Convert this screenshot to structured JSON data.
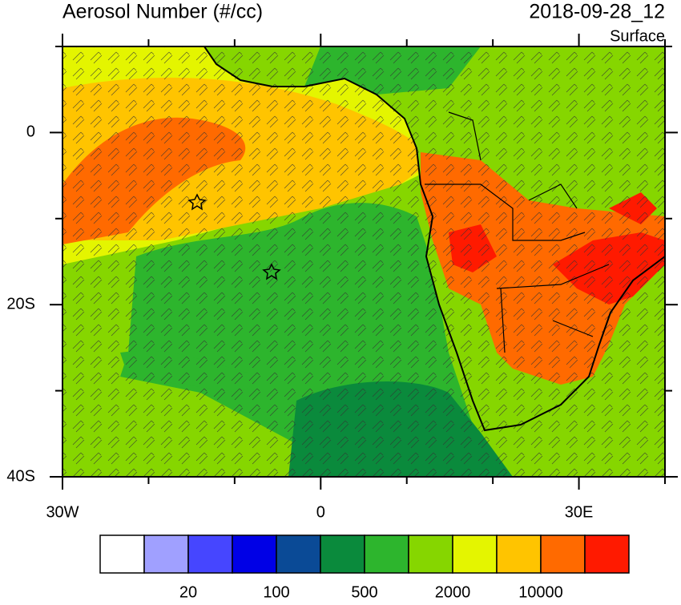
{
  "header": {
    "title": "Aerosol Number (#/cc)",
    "timestamp": "2018-09-28_12",
    "level": "Surface"
  },
  "map": {
    "lon_range": [
      -30,
      40
    ],
    "lat_range": [
      -40,
      10
    ],
    "xticks": [
      {
        "value": -30,
        "label": "30W"
      },
      0,
      {
        "value": 30,
        "label": "30E"
      }
    ],
    "yticks": [
      0,
      {
        "value": -20,
        "label": "20S"
      },
      {
        "value": -40,
        "label": "40S"
      }
    ],
    "minor_xticks": [
      -20,
      -10,
      10,
      20,
      40
    ],
    "minor_yticks": [
      10,
      -10,
      -30
    ]
  },
  "colorbar": {
    "colors": [
      "#ffffff",
      "#a0a0ff",
      "#4646ff",
      "#0000e6",
      "#0a4a96",
      "#0a8a3c",
      "#2db52d",
      "#86d600",
      "#e4f500",
      "#ffc400",
      "#ff6a00",
      "#ff1a00"
    ],
    "labels": [
      20,
      100,
      500,
      2000,
      10000
    ]
  }
}
